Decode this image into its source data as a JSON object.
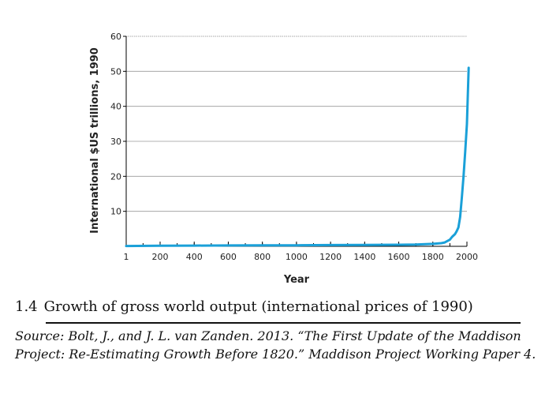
{
  "chart_data": {
    "type": "line",
    "title": "",
    "xlabel": "Year",
    "ylabel": "International $US trillions, 1990",
    "xlim": [
      1,
      2000
    ],
    "ylim": [
      0,
      60
    ],
    "x_ticks": [
      1,
      200,
      400,
      600,
      800,
      1000,
      1200,
      1400,
      1600,
      1800,
      2000
    ],
    "y_ticks": [
      10,
      20,
      30,
      40,
      50,
      60
    ],
    "grid": true,
    "series": [
      {
        "name": "Gross world output",
        "color": "#1aa0d8",
        "x": [
          1,
          200,
          400,
          600,
          800,
          1000,
          1200,
          1400,
          1600,
          1700,
          1800,
          1850,
          1870,
          1900,
          1913,
          1930,
          1940,
          1950,
          1960,
          1970,
          1980,
          1990,
          2000,
          2010
        ],
        "y": [
          0.1,
          0.15,
          0.2,
          0.25,
          0.3,
          0.3,
          0.35,
          0.4,
          0.45,
          0.5,
          0.7,
          0.9,
          1.1,
          1.9,
          2.7,
          3.5,
          4.3,
          5.4,
          8.4,
          13.8,
          20.0,
          27.0,
          35.0,
          51.0
        ]
      }
    ]
  },
  "figure": {
    "number": "1.4",
    "caption": "Growth of gross world output (international prices of 1990)",
    "source": "Source: Bolt, J., and J. L. van Zanden. 2013. “The First Update of the Maddison Project: Re-Estimating Growth Before 1820.” Maddison Project Working Paper 4."
  }
}
